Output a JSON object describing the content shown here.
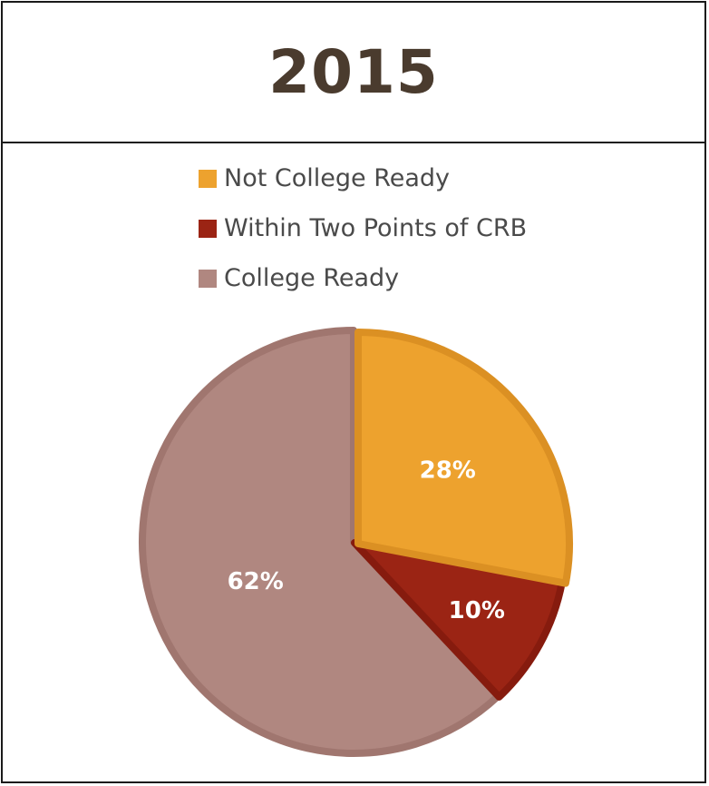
{
  "chart_data": {
    "type": "pie",
    "title": "2015",
    "slices": [
      {
        "label": "Not College Ready",
        "value": 28,
        "display": "28%",
        "color": "#EDA22E",
        "edge": "#DB9023"
      },
      {
        "label": "Within Two Points of CRB",
        "value": 10,
        "display": "10%",
        "color": "#9B2414",
        "edge": "#861B0E"
      },
      {
        "label": "College Ready",
        "value": 62,
        "display": "62%",
        "color": "#B08780",
        "edge": "#A0766F"
      }
    ],
    "legend_placement": "top-center",
    "label_color": "#ffffff"
  }
}
